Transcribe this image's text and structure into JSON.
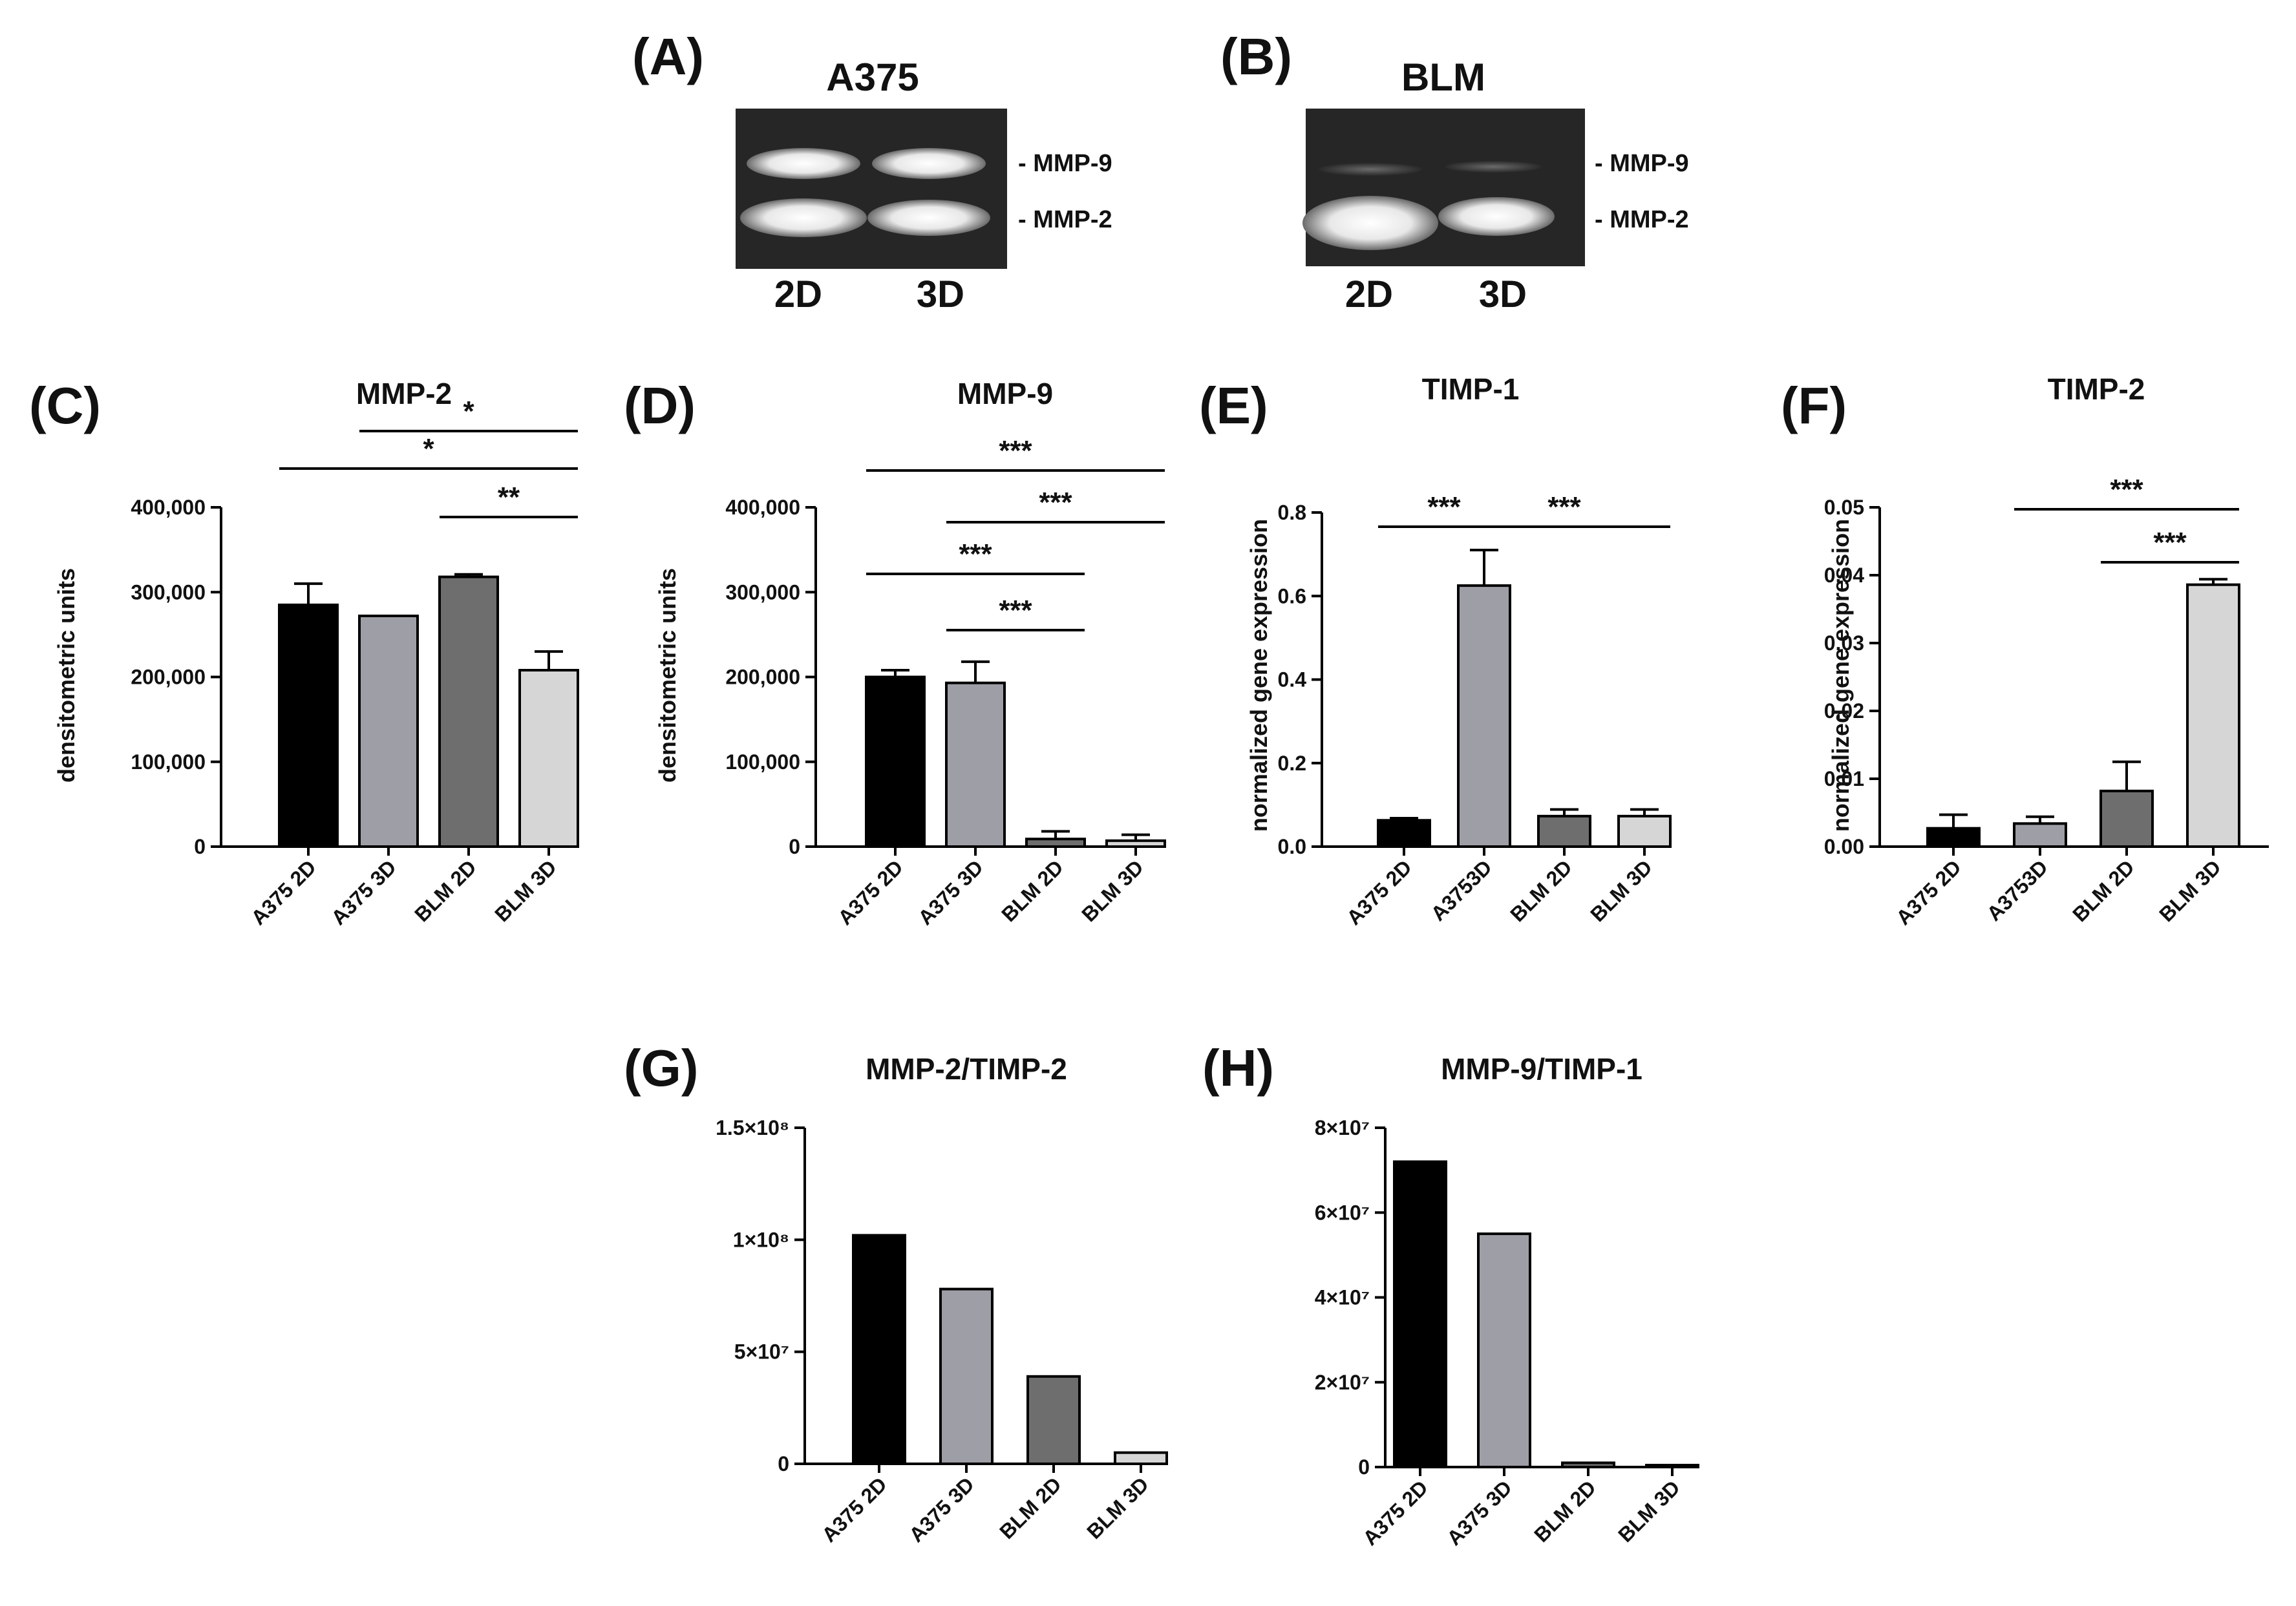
{
  "gels": [
    {
      "letter": "(A)",
      "title": "A375",
      "lanes": [
        "2D",
        "3D"
      ],
      "bands": [
        "- MMP-9",
        "- MMP-2"
      ]
    },
    {
      "letter": "(B)",
      "title": "BLM",
      "lanes": [
        "2D",
        "3D"
      ],
      "bands": [
        "- MMP-9",
        "- MMP-2"
      ]
    }
  ],
  "chart_data": [
    {
      "letter": "(C)",
      "type": "bar",
      "title": "MMP-2",
      "ylabel": "densitometric units",
      "xlabel": "",
      "categories": [
        "A375 2D",
        "A375 3D",
        "BLM 2D",
        "BLM 3D"
      ],
      "values": [
        285000,
        272000,
        318000,
        208000
      ],
      "errors": [
        25000,
        0,
        3000,
        22000
      ],
      "colors": [
        "#000000",
        "#9e9ea6",
        "#6e6e6e",
        "#d6d6d6"
      ],
      "ylim": [
        0,
        400000
      ],
      "ticks": [
        0,
        100000,
        200000,
        300000,
        400000
      ],
      "tick_labels": [
        "0",
        "100,000",
        "200,000",
        "300,000",
        "400,000"
      ],
      "significance": [
        {
          "from": 0,
          "to": 3,
          "label": "*"
        },
        {
          "from": 1,
          "to": 3,
          "label": "*"
        },
        {
          "from": 2,
          "to": 3,
          "label": "**"
        }
      ]
    },
    {
      "letter": "(D)",
      "type": "bar",
      "title": "MMP-9",
      "ylabel": "densitometric units",
      "xlabel": "",
      "categories": [
        "A375 2D",
        "A375 3D",
        "BLM 2D",
        "BLM 3D"
      ],
      "values": [
        200000,
        193000,
        9000,
        7000
      ],
      "errors": [
        8000,
        25000,
        9000,
        7000
      ],
      "colors": [
        "#000000",
        "#9e9ea6",
        "#6e6e6e",
        "#d6d6d6"
      ],
      "ylim": [
        0,
        400000
      ],
      "ticks": [
        0,
        100000,
        200000,
        300000,
        400000
      ],
      "tick_labels": [
        "0",
        "100,000",
        "200,000",
        "300,000",
        "400,000"
      ],
      "significance": [
        {
          "from": 0,
          "to": 3,
          "label": "***"
        },
        {
          "from": 1,
          "to": 3,
          "label": "***"
        },
        {
          "from": 0,
          "to": 2,
          "label": "***"
        },
        {
          "from": 1,
          "to": 2,
          "label": "***"
        }
      ]
    },
    {
      "letter": "(E)",
      "type": "bar",
      "title": "TIMP-1",
      "ylabel": "normalized gene expression",
      "xlabel": "",
      "categories": [
        "A375 2D",
        "A3753D",
        "BLM 2D",
        "BLM 3D"
      ],
      "values": [
        0.063,
        0.625,
        0.073,
        0.073
      ],
      "errors": [
        0.005,
        0.085,
        0.016,
        0.016
      ],
      "colors": [
        "#000000",
        "#9e9ea6",
        "#6e6e6e",
        "#d6d6d6"
      ],
      "ylim": [
        0,
        0.8
      ],
      "ticks": [
        0,
        0.2,
        0.4,
        0.6,
        0.8
      ],
      "tick_labels": [
        "0.0",
        "0.2",
        "0.4",
        "0.6",
        "0.8"
      ],
      "significance": [
        {
          "from": 0,
          "to": 1,
          "label": "***"
        },
        {
          "from": 1,
          "to": 3,
          "label": "***"
        }
      ]
    },
    {
      "letter": "(F)",
      "type": "bar",
      "title": "TIMP-2",
      "ylabel": "normalized gene expression",
      "xlabel": "",
      "categories": [
        "A375 2D",
        "A3753D",
        "BLM 2D",
        "BLM 3D"
      ],
      "values": [
        0.0027,
        0.0034,
        0.0082,
        0.0386
      ],
      "errors": [
        0.002,
        0.001,
        0.0043,
        0.0008
      ],
      "colors": [
        "#000000",
        "#9e9ea6",
        "#6e6e6e",
        "#d6d6d6"
      ],
      "ylim": [
        0,
        0.05
      ],
      "ticks": [
        0,
        0.01,
        0.02,
        0.03,
        0.04,
        0.05
      ],
      "tick_labels": [
        "0.00",
        "0.01",
        "0.02",
        "0.03",
        "0.04",
        "0.05"
      ],
      "significance": [
        {
          "from": 1,
          "to": 3,
          "label": "***"
        },
        {
          "from": 2,
          "to": 3,
          "label": "***"
        }
      ]
    },
    {
      "letter": "(G)",
      "type": "bar",
      "title": "MMP-2/TIMP-2",
      "ylabel": "",
      "xlabel": "",
      "categories": [
        "A375 2D",
        "A375 3D",
        "BLM 2D",
        "BLM 3D"
      ],
      "values": [
        102000000,
        78000000,
        39000000,
        5000000
      ],
      "errors": [
        0,
        0,
        0,
        0
      ],
      "colors": [
        "#000000",
        "#9e9ea6",
        "#6e6e6e",
        "#d6d6d6"
      ],
      "ylim": [
        0,
        150000000
      ],
      "ticks": [
        0,
        50000000,
        100000000,
        150000000
      ],
      "tick_labels": [
        "0",
        "5×10⁷",
        "1×10⁸",
        "1.5×10⁸"
      ],
      "significance": []
    },
    {
      "letter": "(H)",
      "type": "bar",
      "title": "MMP-9/TIMP-1",
      "ylabel": "",
      "xlabel": "",
      "categories": [
        "A375 2D",
        "A375 3D",
        "BLM 2D",
        "BLM 3D"
      ],
      "values": [
        72000000,
        55000000,
        1000000,
        0
      ],
      "errors": [
        0,
        0,
        0,
        0
      ],
      "colors": [
        "#000000",
        "#9e9ea6",
        "#6e6e6e",
        "#d6d6d6"
      ],
      "ylim": [
        0,
        80000000
      ],
      "ticks": [
        0,
        20000000,
        40000000,
        60000000,
        80000000
      ],
      "tick_labels": [
        "0",
        "2×10⁷",
        "4×10⁷",
        "6×10⁷",
        "8×10⁷"
      ],
      "significance": []
    }
  ]
}
